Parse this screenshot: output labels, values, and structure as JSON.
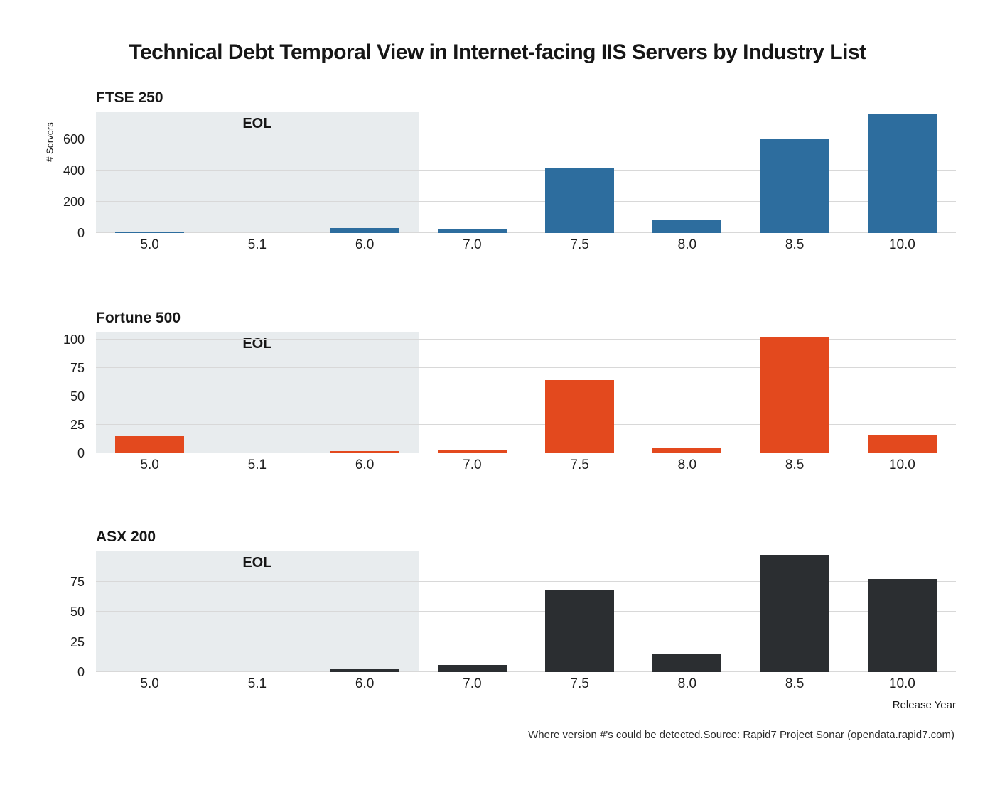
{
  "title": "Technical Debt Temporal View in Internet-facing IIS Servers by Industry List",
  "eol_label": "EOL",
  "xlabel": "Release Year",
  "ylabel": "# Servers",
  "caption": "Where version #'s could be detected.Source: Rapid7 Project Sonar (opendata.rapid7.com)",
  "chart_data": [
    {
      "type": "bar",
      "title": "FTSE 250",
      "categories": [
        "5.0",
        "5.1",
        "6.0",
        "7.0",
        "7.5",
        "8.0",
        "8.5",
        "10.0"
      ],
      "values": [
        10,
        0,
        30,
        22,
        415,
        80,
        600,
        760
      ],
      "yticks": [
        0,
        200,
        400,
        600
      ],
      "ylim": [
        0,
        770
      ],
      "color": "#2d6d9e",
      "eol_until_category": "6.0",
      "grid": "horizontal",
      "legend": "none"
    },
    {
      "type": "bar",
      "title": "Fortune 500",
      "categories": [
        "5.0",
        "5.1",
        "6.0",
        "7.0",
        "7.5",
        "8.0",
        "8.5",
        "10.0"
      ],
      "values": [
        15,
        0,
        2,
        3,
        64,
        5,
        102,
        16
      ],
      "yticks": [
        0,
        25,
        50,
        75,
        100
      ],
      "ylim": [
        0,
        106
      ],
      "color": "#e3491e",
      "eol_until_category": "6.0",
      "grid": "horizontal",
      "legend": "none"
    },
    {
      "type": "bar",
      "title": "ASX 200",
      "categories": [
        "5.0",
        "5.1",
        "6.0",
        "7.0",
        "7.5",
        "8.0",
        "8.5",
        "10.0"
      ],
      "values": [
        0,
        0,
        3,
        6,
        68,
        15,
        97,
        77
      ],
      "yticks": [
        0,
        25,
        50,
        75
      ],
      "ylim": [
        0,
        100
      ],
      "color": "#2b2e31",
      "eol_until_category": "6.0",
      "grid": "horizontal",
      "legend": "none"
    }
  ]
}
